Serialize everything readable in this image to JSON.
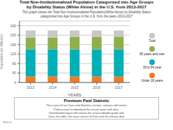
{
  "chart_data": {
    "type": "bar",
    "stacked": true,
    "title": "Total Non-Institutionalized Population Categorized into Age Groups\nby Disability Status (White Alone) in the U.S. from 2013-2017",
    "subtitle": "This graph shows the Total Non-Institutionalized Population(White Alone) by Disability Status\ncategorized into Age Groups in the U.S. from the years 2013-2017",
    "xlabel": "YEARS",
    "ylabel": "Population (in Millions)",
    "categories": [
      "2013",
      "2014",
      "2015",
      "2016",
      "2017"
    ],
    "series": [
      {
        "name": "Under 18 years",
        "color": "#f47920",
        "values": [
          25,
          25,
          25,
          25,
          25
        ]
      },
      {
        "name": "18 to 64 year",
        "color": "#00b0b9",
        "values": [
          115,
          115,
          115,
          115,
          115
        ]
      },
      {
        "name": "65 years and over",
        "color": "#8db04a",
        "values": [
          50,
          50,
          52,
          52,
          54
        ]
      },
      {
        "name": "Total",
        "color": "#c8c8c8",
        "values": [
          30,
          30,
          28,
          28,
          26
        ]
      }
    ],
    "ylim": [
      0,
      260
    ],
    "yticks": [
      0,
      40,
      80,
      120,
      160,
      200,
      240
    ],
    "grid": true,
    "legend": "right",
    "annotations": [
      "Premium Paid Statistic",
      "This is part of our Data and Statistics section, and you will need a\nPaid account to download the actual report with data.\nDownloaded report will contain the actual editable graph with\nData, the table, the exact source of Data and the release date",
      "Source"
    ]
  }
}
